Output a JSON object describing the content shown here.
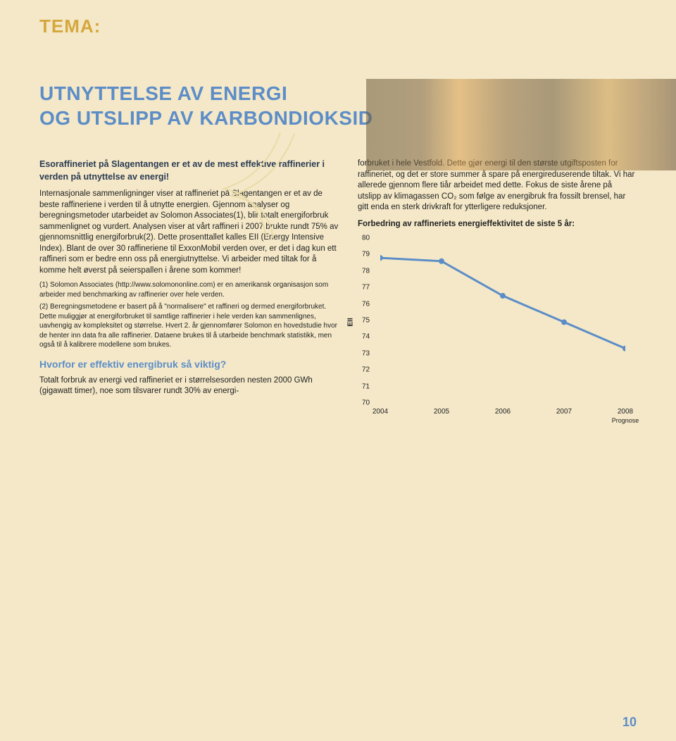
{
  "tema_label": "TEMA:",
  "title_line1": "UTNYTTELSE AV ENERGI",
  "title_line2": "OG UTSLIPP AV KARBONDIOKSID",
  "intro": "Esoraffineriet på Slagentangen er et av de mest effektive raffinerier i verden på utnyttelse av energi!",
  "body1": "Internasjonale sammenligninger viser at raffineriet på Slagentangen er et av de beste raffineriene i verden til å utnytte energien. Gjennom analyser og beregningsmetoder utarbeidet av Solomon Associates(1), blir totalt energiforbruk sammenlignet og vurdert. Analysen viser at vårt raffineri i 2007 brukte rundt 75% av gjennomsnittlig energiforbruk(2). Dette prosenttallet kalles EII (Energy Intensive Index). Blant de over 30 raffineriene til ExxonMobil verden over, er det i dag kun ett raffineri som er bedre enn oss på energiutnyttelse. Vi arbeider med tiltak for å komme helt øverst på seierspallen i årene som kommer!",
  "foot1": "(1) Solomon Associates (http://www.solomononline.com) er en amerikansk organisasjon som arbeider med benchmarking av raffinerier over hele verden.",
  "foot2": "(2) Beregningsmetodene er basert på å \"normalisere\" et raffineri og dermed energiforbruket. Dette muliggjør at energiforbruket til samtlige raffinerier i hele verden kan sammenlignes, uavhengig av kompleksitet og størrelse. Hvert 2. år gjennomfører Solomon en hovedstudie hvor de henter inn data fra alle raffinerier. Dataene brukes til å utarbeide benchmark statistikk, men også til å kalibrere modellene som brukes.",
  "subhead": "Hvorfor er effektiv energibruk så viktig?",
  "body2": "Totalt forbruk av energi ved raffineriet er i størrelsesorden nesten 2000 GWh (gigawatt timer), noe som tilsvarer rundt 30% av energi-",
  "right1": "forbruket i hele Vestfold. Dette gjør energi til den største utgiftsposten for raffineriet, og det er store summer å spare på energireduserende tiltak. Vi har allerede gjennom flere tiår arbeidet med dette. Fokus de siste årene på utslipp av klimagassen CO₂ som følge av energibruk fra fossilt brensel, har gitt enda en sterk drivkraft for ytterligere reduksjoner.",
  "right_bold": "Forbedring av raffineriets energieffektivitet de siste 5 år:",
  "chart": {
    "type": "line",
    "ylabel": "EII",
    "ylim": [
      70,
      80
    ],
    "yticks": [
      70,
      71,
      72,
      73,
      74,
      75,
      76,
      77,
      78,
      79,
      80
    ],
    "xlabels": [
      "2004",
      "2005",
      "2006",
      "2007",
      "2008"
    ],
    "prognose_label": "Prognose",
    "values": [
      78.8,
      78.6,
      76.5,
      74.9,
      73.3
    ],
    "line_color": "#5c8dc7",
    "line_width": 3,
    "marker_color": "#5c8dc7",
    "marker_size": 4,
    "background": "transparent",
    "tick_fontsize": 10
  },
  "page_number": "10"
}
